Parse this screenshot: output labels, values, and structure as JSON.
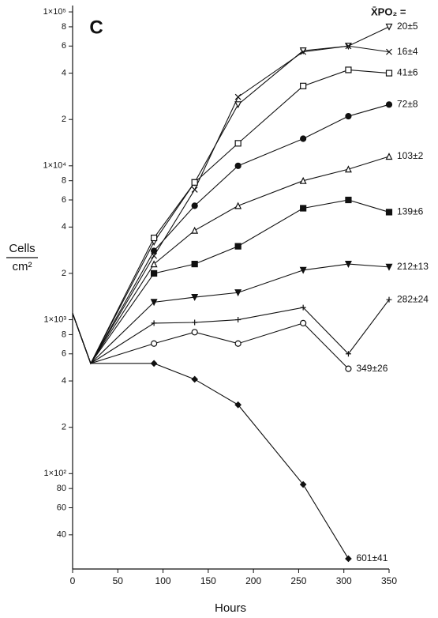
{
  "chart_data": {
    "type": "line",
    "panel": "C",
    "legend_title": "X̄PO₂ =",
    "xlabel": "Hours",
    "ylabel": {
      "numerator": "Cells",
      "denominator": "cm²"
    },
    "log_y": true,
    "color": "#111111",
    "xlim": [
      0,
      350
    ],
    "xticks": [
      0,
      50,
      100,
      150,
      200,
      250,
      300,
      350
    ],
    "ylim": [
      24,
      110000
    ],
    "yticks": [
      {
        "value": 100000,
        "label": "1×10⁵"
      },
      {
        "value": 80000,
        "label": "8"
      },
      {
        "value": 60000,
        "label": "6"
      },
      {
        "value": 40000,
        "label": "4"
      },
      {
        "value": 20000,
        "label": "2"
      },
      {
        "value": 10000,
        "label": "1×10⁴"
      },
      {
        "value": 8000,
        "label": "8"
      },
      {
        "value": 6000,
        "label": "6"
      },
      {
        "value": 4000,
        "label": "4"
      },
      {
        "value": 2000,
        "label": "2"
      },
      {
        "value": 1000,
        "label": "1×10³"
      },
      {
        "value": 800,
        "label": "8"
      },
      {
        "value": 600,
        "label": "6"
      },
      {
        "value": 400,
        "label": "4"
      },
      {
        "value": 200,
        "label": "2"
      },
      {
        "value": 100,
        "label": "1×10²"
      },
      80,
      60,
      40
    ],
    "x": [
      0,
      20,
      90,
      135,
      183,
      255,
      305,
      350
    ],
    "series": [
      {
        "name": "20±5",
        "marker": "triangle-down",
        "values": [
          1100,
          520,
          3200,
          7800,
          25000,
          56000,
          60000,
          80000
        ]
      },
      {
        "name": "16±4",
        "marker": "x",
        "values": [
          1100,
          520,
          2600,
          7000,
          28000,
          55000,
          60000,
          55000
        ]
      },
      {
        "name": "41±6",
        "marker": "square",
        "values": [
          1100,
          520,
          3400,
          7800,
          14000,
          33000,
          42000,
          40000
        ]
      },
      {
        "name": "72±8",
        "marker": "circle-filled",
        "values": [
          1100,
          520,
          2800,
          5500,
          10000,
          15000,
          21000,
          25000
        ]
      },
      {
        "name": "103±2",
        "marker": "triangle",
        "values": [
          1100,
          520,
          2300,
          3800,
          5500,
          8000,
          9500,
          11500
        ]
      },
      {
        "name": "139±6",
        "marker": "square-filled",
        "values": [
          1100,
          520,
          2000,
          2300,
          3000,
          5300,
          6000,
          5000
        ]
      },
      {
        "name": "212±13",
        "marker": "triangle-down-filled",
        "values": [
          1100,
          520,
          1300,
          1400,
          1500,
          2100,
          2300,
          2200
        ]
      },
      {
        "name": "282±24",
        "marker": "plus",
        "values": [
          1100,
          520,
          950,
          960,
          1000,
          1200,
          600,
          1350
        ]
      },
      {
        "name": "349±26",
        "marker": "circle",
        "values": [
          1100,
          520,
          700,
          830,
          700,
          950,
          480,
          null
        ]
      },
      {
        "name": "601±41",
        "marker": "diamond-filled",
        "values": [
          1100,
          520,
          520,
          410,
          280,
          85,
          28,
          null
        ]
      }
    ]
  }
}
